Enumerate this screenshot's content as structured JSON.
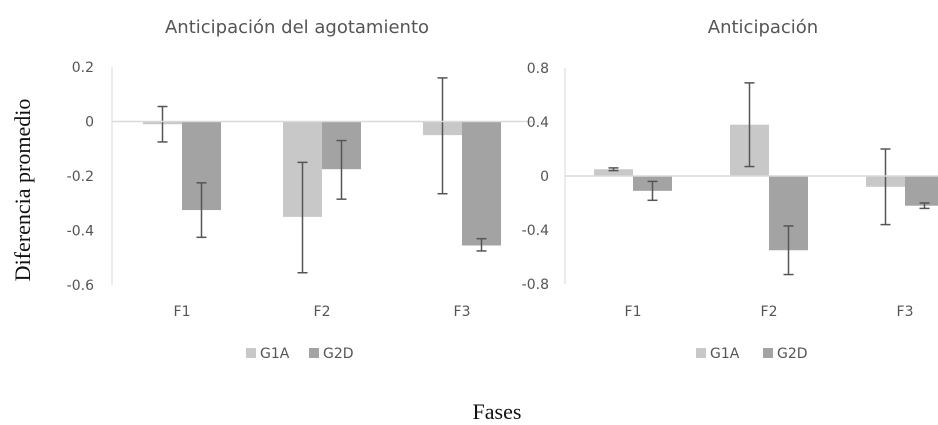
{
  "figure": {
    "ylabel": "Diferencia promedio",
    "xlabel": "Fases"
  },
  "chart_data": [
    {
      "type": "bar",
      "title": "Anticipación del agotamiento",
      "categories": [
        "F1",
        "F2",
        "F3"
      ],
      "ylim": [
        -0.6,
        0.2
      ],
      "yticks": [
        0.2,
        0,
        -0.2,
        -0.4,
        -0.6
      ],
      "ytick_labels": [
        "0.2",
        "0",
        "-0.2",
        "-0.4",
        "-0.6"
      ],
      "legend_position": "bottom",
      "series": [
        {
          "name": "G1A",
          "color": "#c8c8c8",
          "values": [
            -0.01,
            -0.35,
            -0.05
          ],
          "err_low": [
            -0.075,
            -0.555,
            -0.265
          ],
          "err_high": [
            0.055,
            -0.15,
            0.16
          ]
        },
        {
          "name": "G2D",
          "color": "#a3a3a3",
          "values": [
            -0.325,
            -0.175,
            -0.455
          ],
          "err_low": [
            -0.425,
            -0.285,
            -0.475
          ],
          "err_high": [
            -0.225,
            -0.07,
            -0.43
          ]
        }
      ]
    },
    {
      "type": "bar",
      "title": "Anticipación",
      "categories": [
        "F1",
        "F2",
        "F3"
      ],
      "ylim": [
        -0.8,
        0.8
      ],
      "yticks": [
        0.8,
        0.4,
        0,
        -0.4,
        -0.8
      ],
      "ytick_labels": [
        "0.8",
        "0.4",
        "0",
        "-0.4",
        "-0.8"
      ],
      "legend_position": "bottom",
      "series": [
        {
          "name": "G1A",
          "color": "#c8c8c8",
          "values": [
            0.05,
            0.38,
            -0.08
          ],
          "err_low": [
            0.04,
            0.07,
            -0.36
          ],
          "err_high": [
            0.06,
            0.69,
            0.2
          ]
        },
        {
          "name": "G2D",
          "color": "#a3a3a3",
          "values": [
            -0.11,
            -0.55,
            -0.22
          ],
          "err_low": [
            -0.18,
            -0.73,
            -0.24
          ],
          "err_high": [
            -0.04,
            -0.37,
            -0.2
          ]
        }
      ]
    }
  ]
}
